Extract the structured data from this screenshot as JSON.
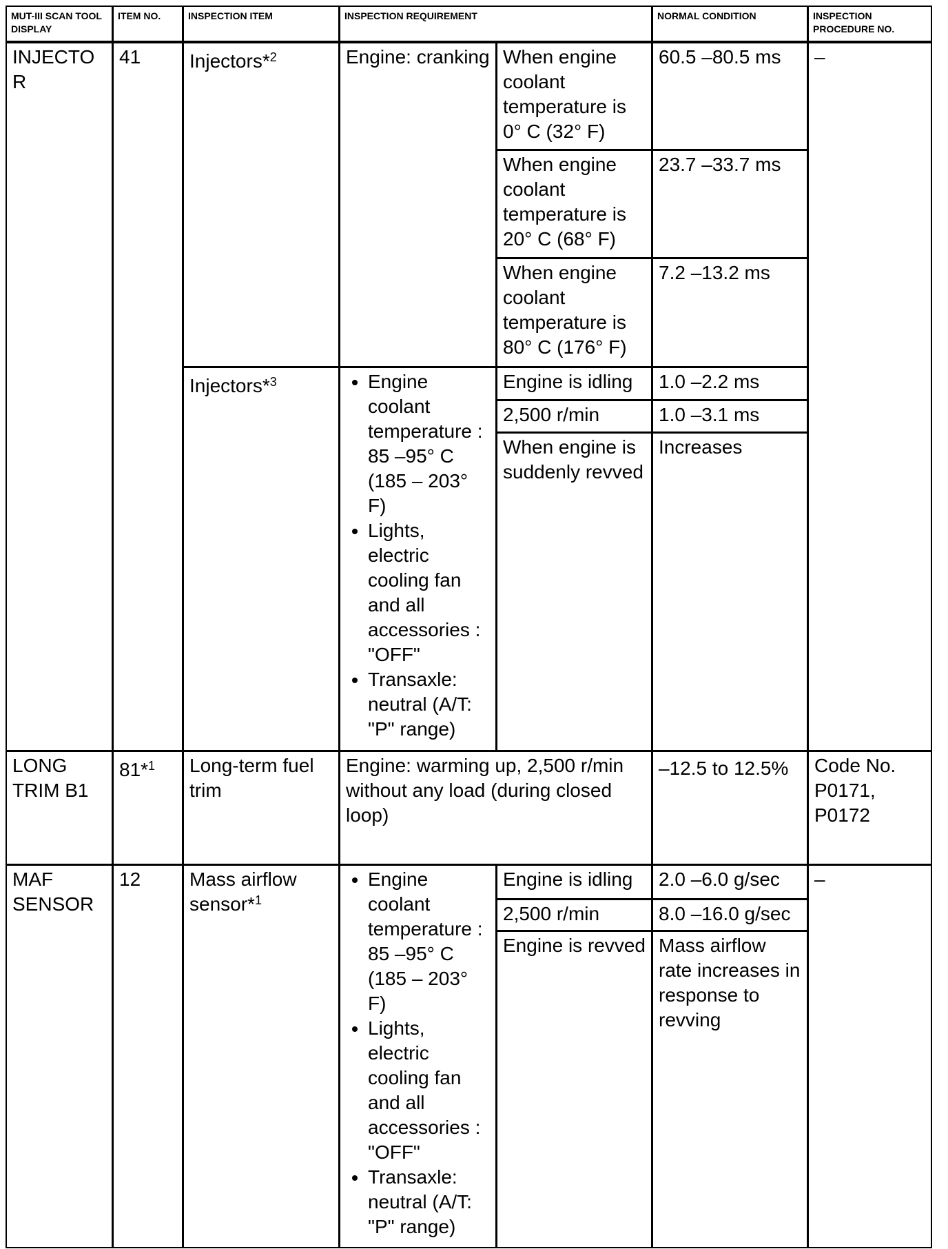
{
  "headers": [
    "MUT-III SCAN TOOL DISPLAY",
    "ITEM NO.",
    "INSPECTION ITEM",
    "INSPECTION REQUIREMENT",
    "NORMAL CONDITION",
    "INSPECTION PROCEDURE NO."
  ],
  "injector": {
    "display": "INJECTO R",
    "item_no": "41",
    "item1": "Injectors*",
    "item1_sup": "2",
    "req1": "Engine: cranking",
    "conds1": [
      "When engine coolant temperature is 0° C (32° F)",
      "When engine coolant temperature is 20° C (68° F)",
      "When engine coolant temperature is 80° C (176° F)"
    ],
    "normals1": [
      "60.5 –80.5 ms",
      "23.7 –33.7 ms",
      "7.2 –13.2 ms"
    ],
    "item2": "Injectors*",
    "item2_sup": "3",
    "req2": [
      "Engine coolant temperature : 85 –95° C (185 – 203° F)",
      "Lights, electric cooling fan and all accessories : \"OFF\"",
      "Transaxle: neutral (A/T: \"P\" range)"
    ],
    "conds2": [
      "Engine is idling",
      "2,500 r/min",
      "When engine is suddenly revved"
    ],
    "normals2": [
      "1.0 –2.2 ms",
      "1.0 –3.1 ms",
      "Increases"
    ],
    "proc": "–"
  },
  "trim": {
    "display": "LONG TRIM B1",
    "item_no": "81*",
    "item_no_sup": "1",
    "item": "Long-term fuel trim",
    "req": "Engine: warming up, 2,500 r/min without any load (during closed loop)",
    "normal": "–12.5 to 12.5%",
    "proc": "Code No. P0171, P0172"
  },
  "maf": {
    "display": "MAF SENSOR",
    "item_no": "12",
    "item": "Mass airflow sensor*",
    "item_sup": "1",
    "req": [
      "Engine coolant temperature : 85 –95° C (185 – 203° F)",
      "Lights, electric cooling fan and all accessories : \"OFF\"",
      "Transaxle: neutral (A/T: \"P\" range)"
    ],
    "conds": [
      "Engine is idling",
      "2,500 r/min",
      "Engine is revved"
    ],
    "normals": [
      "2.0 –6.0 g/sec",
      "8.0 –16.0 g/sec",
      "Mass airflow rate increases in response to revving"
    ],
    "proc": "–"
  }
}
